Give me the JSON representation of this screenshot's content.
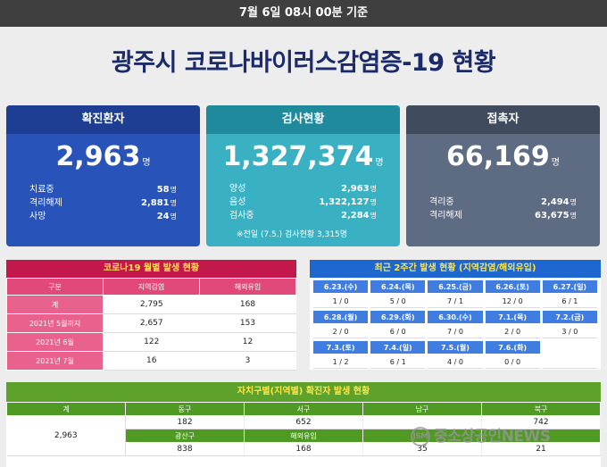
{
  "header": {
    "timestamp": "7월 6일 08시 00분 기준"
  },
  "page": {
    "title": "광주시 코로나바이러스감염증-19 현황"
  },
  "confirmed": {
    "label": "확진환자",
    "total": "2,963",
    "unit": "명",
    "rows": [
      {
        "label": "치료중",
        "value": "58",
        "unit": "명"
      },
      {
        "label": "격리해제",
        "value": "2,881",
        "unit": "명"
      },
      {
        "label": "사망",
        "value": "24",
        "unit": "명"
      }
    ]
  },
  "tests": {
    "label": "검사현황",
    "total": "1,327,374",
    "unit": "명",
    "rows": [
      {
        "label": "양성",
        "value": "2,963",
        "unit": "명"
      },
      {
        "label": "음성",
        "value": "1,322,127",
        "unit": "명"
      },
      {
        "label": "검사중",
        "value": "2,284",
        "unit": "명"
      }
    ],
    "note": "※전일 (7.5.) 검사현황 3,315명"
  },
  "contacts": {
    "label": "접촉자",
    "total": "66,169",
    "unit": "명",
    "rows": [
      {
        "label": "격리중",
        "value": "2,494",
        "unit": "명"
      },
      {
        "label": "격리해제",
        "value": "63,675",
        "unit": "명"
      }
    ]
  },
  "monthly": {
    "title": "코로나19 월별 발생 현황",
    "headers": [
      "구분",
      "지역감염",
      "해외유입"
    ],
    "rows": [
      {
        "label": "계",
        "local": "2,795",
        "overseas": "168"
      },
      {
        "label": "2021년 5월까지",
        "local": "2,657",
        "overseas": "153"
      },
      {
        "label": "2021년 6월",
        "local": "122",
        "overseas": "12"
      },
      {
        "label": "2021년 7월",
        "local": "16",
        "overseas": "3"
      }
    ]
  },
  "twoweek": {
    "title": "최근 2주간 발생 현황 (지역감염/해외유입)",
    "rows": [
      {
        "dates": [
          "6.23.(수)",
          "6.24.(목)",
          "6.25.(금)",
          "6.26.(토)",
          "6.27.(일)"
        ],
        "values": [
          "1 / 0",
          "5 / 0",
          "7 / 1",
          "12 / 0",
          "6 / 1"
        ]
      },
      {
        "dates": [
          "6.28.(월)",
          "6.29.(화)",
          "6.30.(수)",
          "7.1.(목)",
          "7.2.(금)"
        ],
        "values": [
          "2 / 0",
          "6 / 0",
          "7 / 0",
          "2 / 0",
          "3 / 0"
        ]
      },
      {
        "dates": [
          "7.3.(토)",
          "7.4.(일)",
          "7.5.(월)",
          "7.6.(화)",
          ""
        ],
        "values": [
          "1 / 2",
          "6 / 1",
          "4 / 0",
          "0 / 0",
          ""
        ]
      }
    ]
  },
  "district": {
    "title": "자치구별(지역별) 확진자 발생 현황",
    "total_label": "계",
    "total": "2,963",
    "row1_headers": [
      "동구",
      "서구",
      "남구",
      "북구"
    ],
    "row1_values": [
      "182",
      "652",
      "",
      "742"
    ],
    "row2_headers": [
      "광산구",
      "해외유입",
      "",
      ""
    ],
    "row2_values": [
      "838",
      "168",
      "35",
      "21"
    ]
  },
  "watermark": {
    "logo": "JSM",
    "text": "중소상공인NEWS"
  }
}
